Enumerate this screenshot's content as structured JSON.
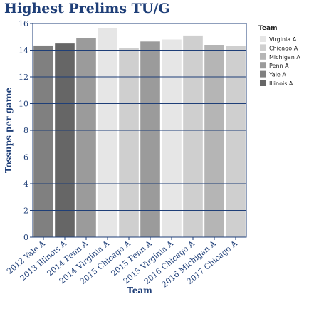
{
  "chart_data": {
    "type": "bar",
    "title": "Highest Prelims TU/G",
    "xlabel": "Team",
    "ylabel": "Tossups per game",
    "ylim": [
      0,
      16
    ],
    "yticks": [
      0,
      2,
      4,
      6,
      8,
      10,
      12,
      14,
      16
    ],
    "grid": true,
    "legend_title": "Team",
    "legend_position": "right",
    "categories": [
      "2012 Yale A",
      "2013 Illinois A",
      "2014 Penn A",
      "2014 Virginia A",
      "2015 Chicago A",
      "2015 Penn A",
      "2015 Virginia A",
      "2016 Chicago A",
      "2016 Michigan A",
      "2017 Chicago A"
    ],
    "values": [
      14.35,
      14.5,
      14.9,
      15.65,
      14.15,
      14.65,
      14.8,
      15.1,
      14.4,
      14.3
    ],
    "bar_series": [
      "Yale A",
      "Illinois A",
      "Penn A",
      "Virginia A",
      "Chicago A",
      "Penn A",
      "Virginia A",
      "Chicago A",
      "Michigan A",
      "Chicago A"
    ],
    "series": [
      {
        "name": "Virginia A",
        "color": "#e6e6e6"
      },
      {
        "name": "Chicago A",
        "color": "#cfcfcf"
      },
      {
        "name": "Michigan A",
        "color": "#b5b5b5"
      },
      {
        "name": "Penn A",
        "color": "#9b9b9b"
      },
      {
        "name": "Yale A",
        "color": "#808080"
      },
      {
        "name": "Illinois A",
        "color": "#666666"
      }
    ],
    "colors": {
      "axis": "#1f3f78",
      "grid": "#1f3f78",
      "text": "#1f3f78"
    }
  }
}
